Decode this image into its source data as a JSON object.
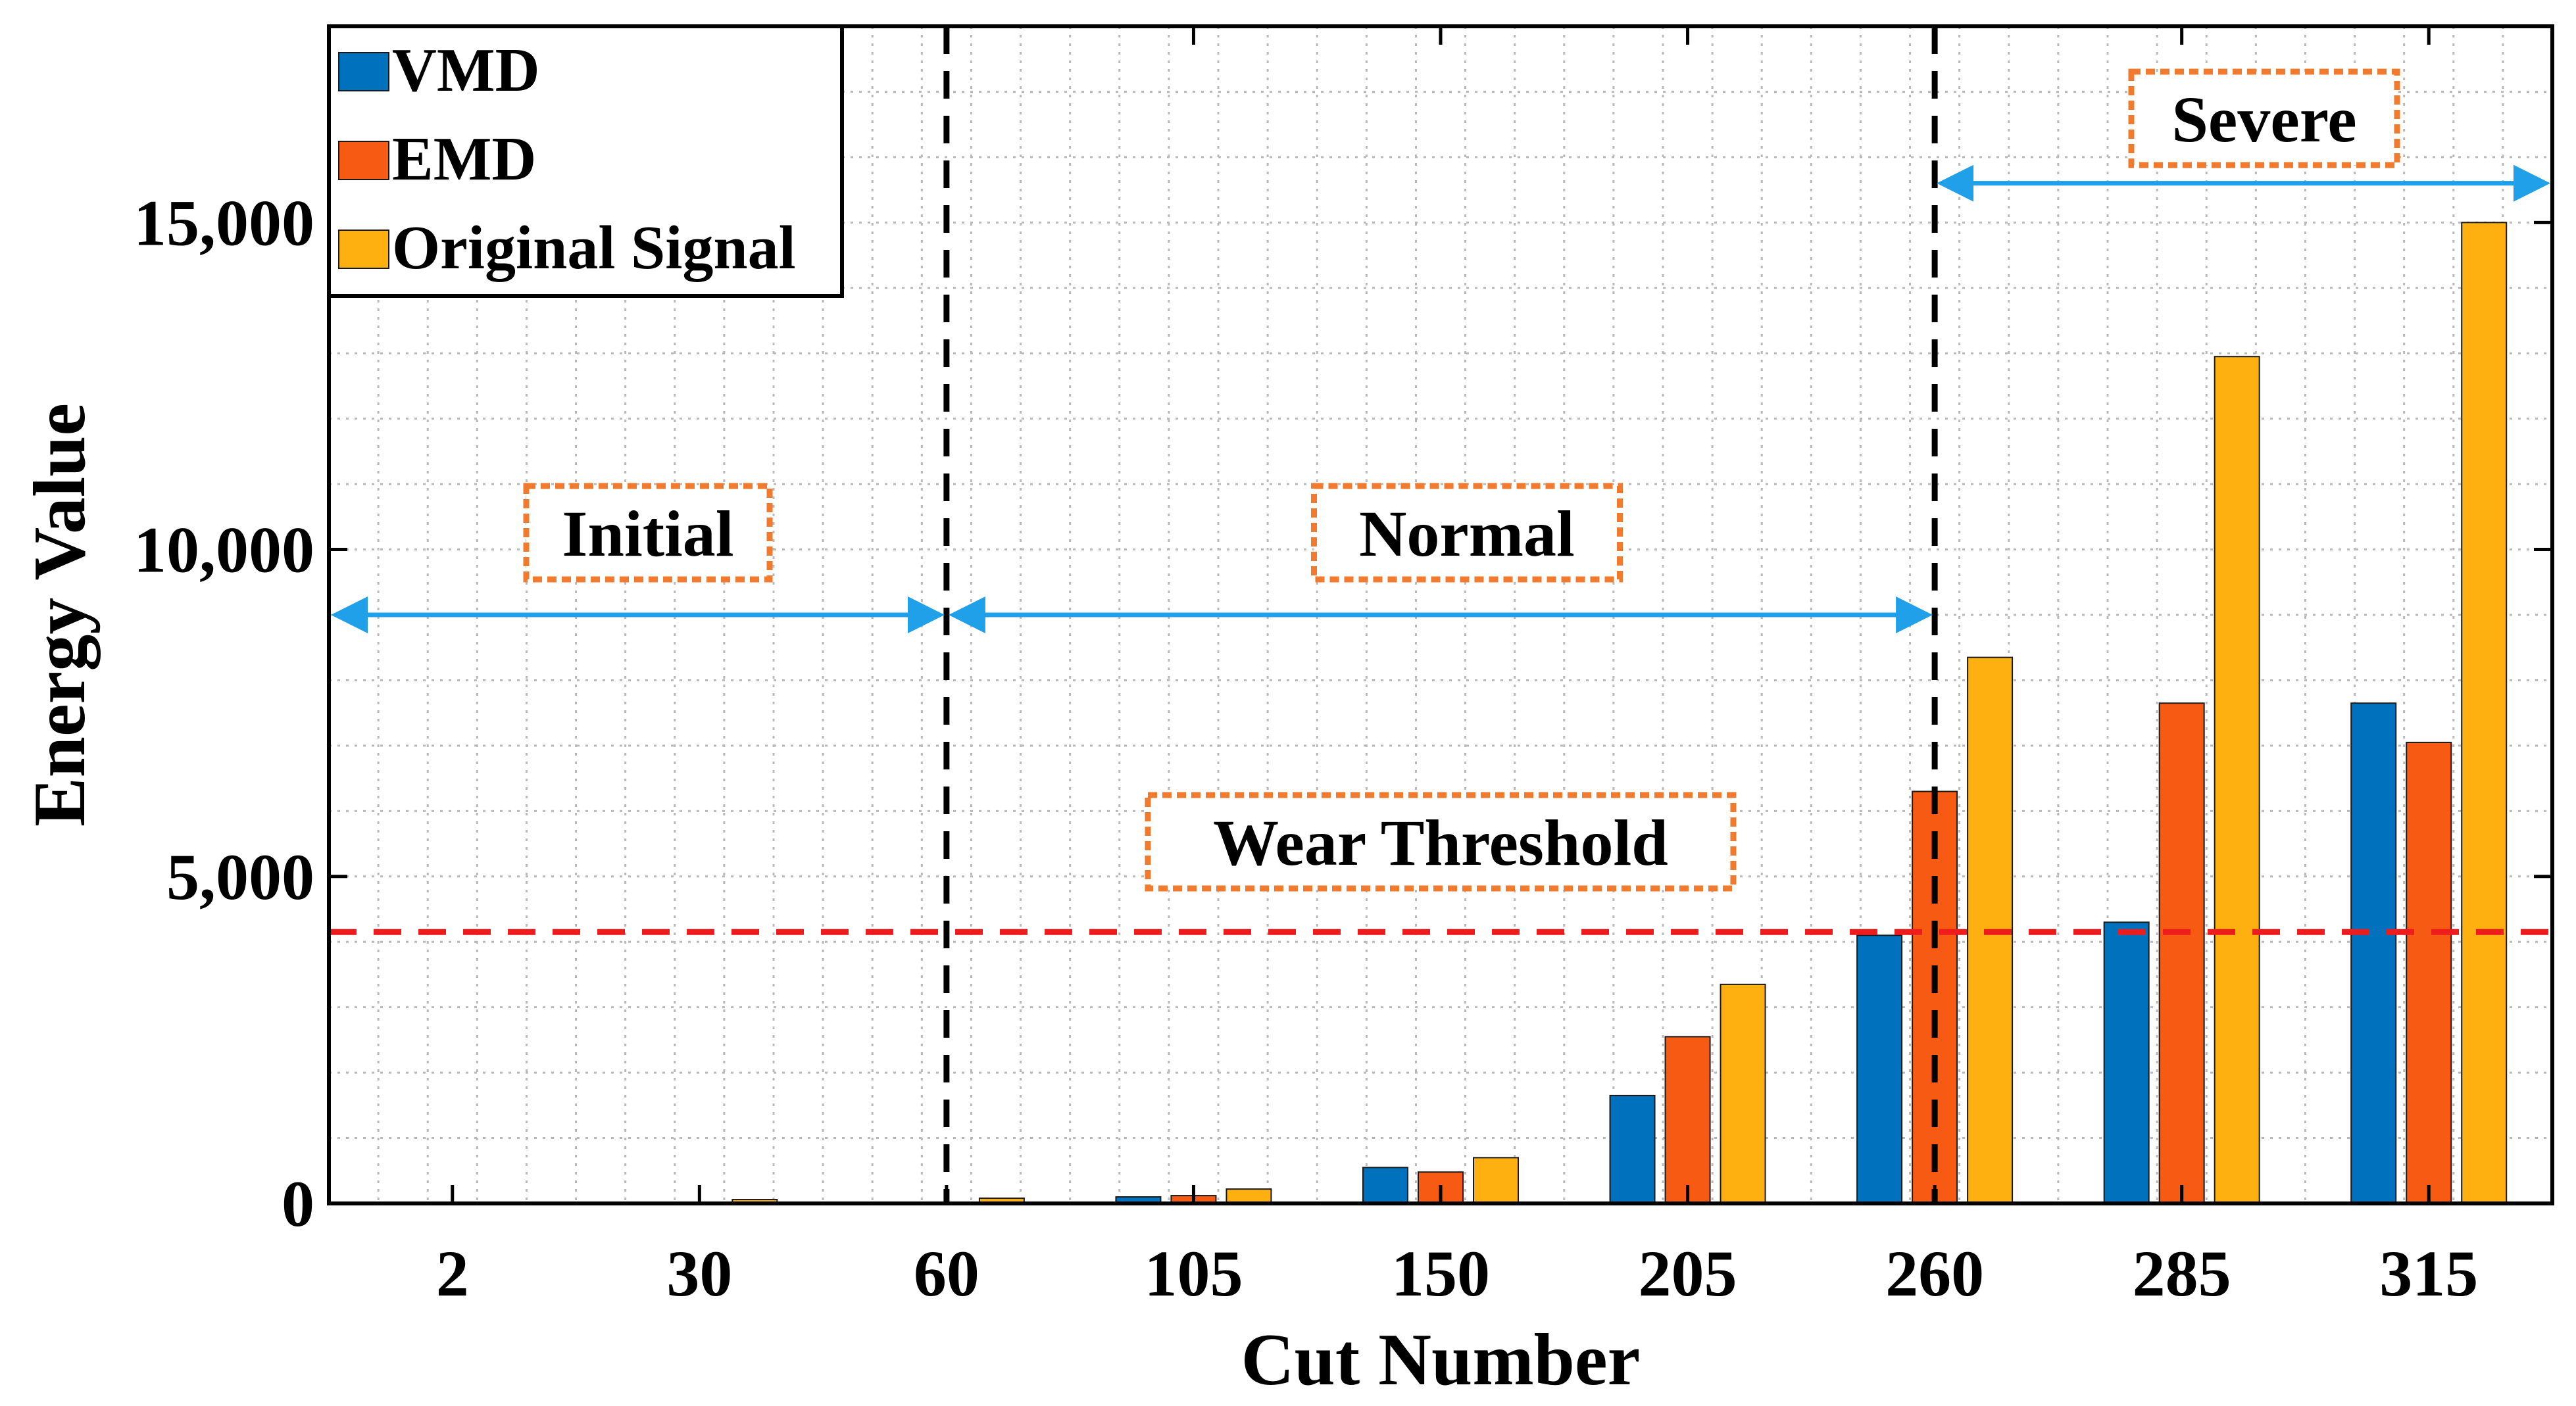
{
  "chart_data": {
    "type": "bar",
    "title": "",
    "xlabel": "Cut Number",
    "ylabel": "Energy Value",
    "categories": [
      "2",
      "30",
      "60",
      "105",
      "150",
      "205",
      "260",
      "285",
      "315"
    ],
    "ylim": [
      0,
      18000
    ],
    "yticks": [
      0,
      5000,
      10000,
      15000
    ],
    "ytick_labels": [
      "0",
      "5,000",
      "10,000",
      "15,000"
    ],
    "grid": "minor-dotted",
    "legend_position": "top-left",
    "series": [
      {
        "name": "VMD",
        "color": "#0072BD",
        "values": [
          0,
          0,
          0,
          100,
          550,
          1650,
          4100,
          4300,
          7650
        ]
      },
      {
        "name": "EMD",
        "color": "#F75A12",
        "values": [
          0,
          0,
          0,
          120,
          480,
          2550,
          6300,
          7650,
          7050
        ]
      },
      {
        "name": "Original Signal",
        "color": "#FDB010",
        "values": [
          0,
          60,
          80,
          220,
          700,
          3350,
          8350,
          12950,
          15000
        ]
      }
    ],
    "threshold": {
      "label": "Wear Threshold",
      "value": 4150,
      "color": "#EE1C1C"
    },
    "stage_separators": [
      {
        "at_category": "60"
      },
      {
        "at_category": "260"
      }
    ],
    "stages": [
      {
        "label": "Initial",
        "from_category": "2",
        "to_category": "60",
        "arrow_y": 9000,
        "color": "#1FA0E8"
      },
      {
        "label": "Normal",
        "from_category": "60",
        "to_category": "260",
        "arrow_y": 9000,
        "color": "#1FA0E8"
      },
      {
        "label": "Severe",
        "from_category": "260",
        "to_category": "315",
        "arrow_y": 15600,
        "color": "#1FA0E8"
      }
    ],
    "annotation_box_color": "#F07A2E"
  }
}
